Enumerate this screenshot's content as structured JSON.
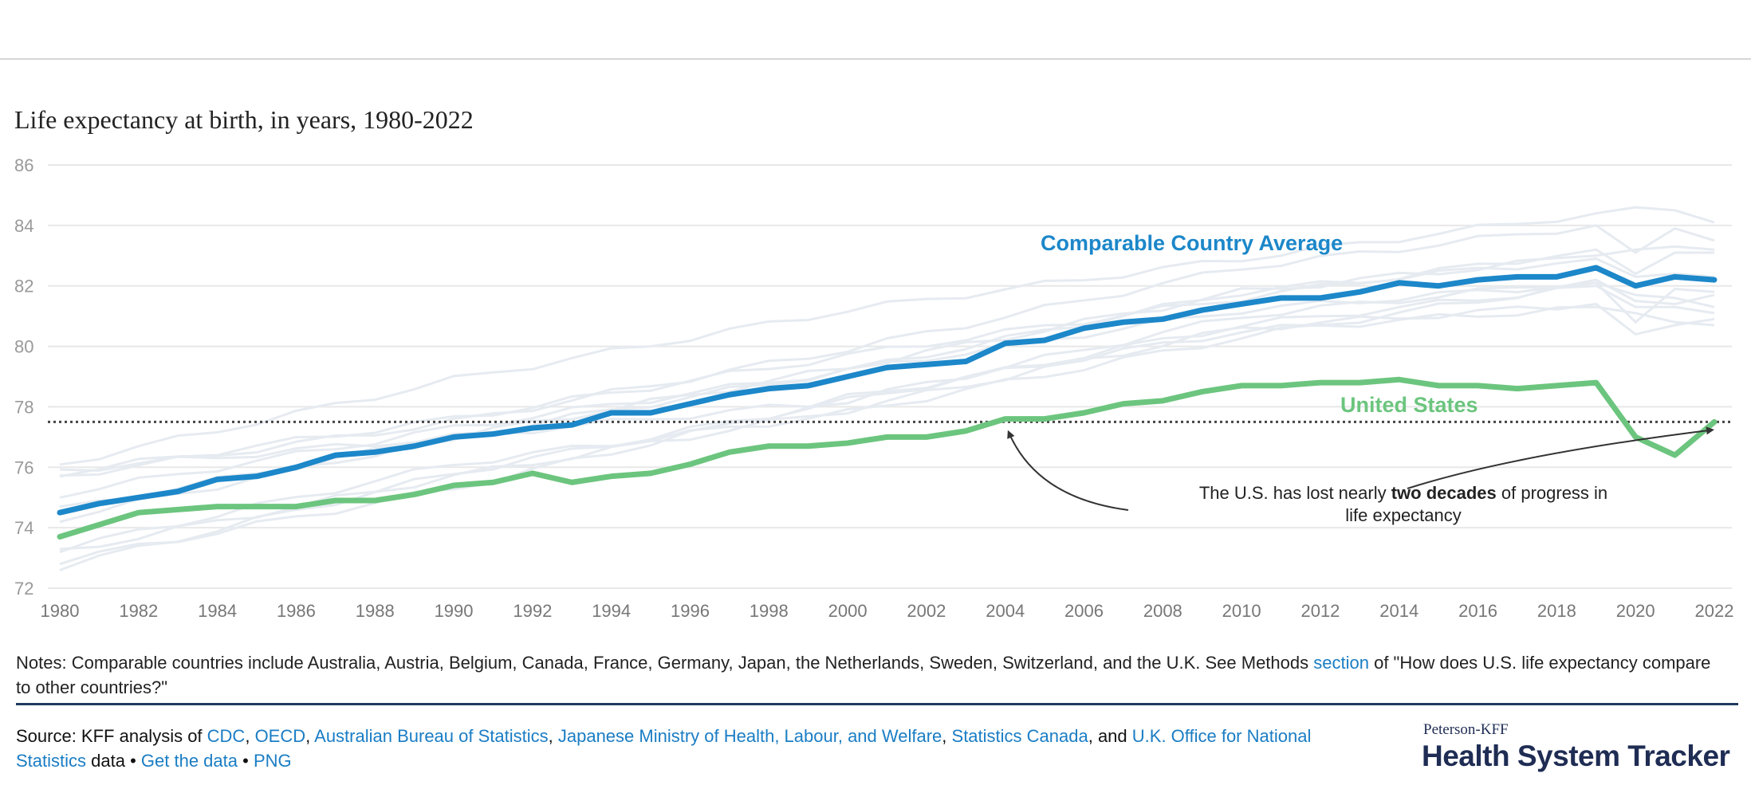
{
  "chart_data": {
    "type": "line",
    "title": "Life expectancy at birth, in years, 1980-2022",
    "xlabel": "",
    "ylabel": "",
    "xlim": [
      1980,
      2022
    ],
    "ylim": [
      72,
      86
    ],
    "yticks": [
      "72",
      "74",
      "76",
      "78",
      "80",
      "82",
      "84",
      "86"
    ],
    "xticks": [
      "1980",
      "1982",
      "1984",
      "1986",
      "1988",
      "1990",
      "1992",
      "1994",
      "1996",
      "1998",
      "2000",
      "2002",
      "2004",
      "2006",
      "2008",
      "2010",
      "2012",
      "2014",
      "2016",
      "2018",
      "2020",
      "2022"
    ],
    "grid": true,
    "reference_line": {
      "y": 77.5,
      "style": "dotted"
    },
    "years": [
      1980,
      1981,
      1982,
      1983,
      1984,
      1985,
      1986,
      1987,
      1988,
      1989,
      1990,
      1991,
      1992,
      1993,
      1994,
      1995,
      1996,
      1997,
      1998,
      1999,
      2000,
      2001,
      2002,
      2003,
      2004,
      2005,
      2006,
      2007,
      2008,
      2009,
      2010,
      2011,
      2012,
      2013,
      2014,
      2015,
      2016,
      2017,
      2018,
      2019,
      2020,
      2021,
      2022
    ],
    "series": [
      {
        "name": "Comparable Country Average",
        "label": "Comparable Country Average",
        "color": "#1c87c9",
        "values": [
          74.5,
          74.8,
          75.0,
          75.2,
          75.6,
          75.7,
          76.0,
          76.4,
          76.5,
          76.7,
          77.0,
          77.1,
          77.3,
          77.4,
          77.8,
          77.8,
          78.1,
          78.4,
          78.6,
          78.7,
          79.0,
          79.3,
          79.4,
          79.5,
          80.1,
          80.2,
          80.6,
          80.8,
          80.9,
          81.2,
          81.4,
          81.6,
          81.6,
          81.8,
          82.1,
          82.0,
          82.2,
          82.3,
          82.3,
          82.6,
          82.0,
          82.3,
          82.2
        ]
      },
      {
        "name": "United States",
        "label": "United States",
        "color": "#6cc57e",
        "values": [
          73.7,
          74.1,
          74.5,
          74.6,
          74.7,
          74.7,
          74.7,
          74.9,
          74.9,
          75.1,
          75.4,
          75.5,
          75.8,
          75.5,
          75.7,
          75.8,
          76.1,
          76.5,
          76.7,
          76.7,
          76.8,
          77.0,
          77.0,
          77.2,
          77.6,
          77.6,
          77.8,
          78.1,
          78.2,
          78.5,
          78.7,
          78.7,
          78.8,
          78.8,
          78.9,
          78.7,
          78.7,
          78.6,
          78.7,
          78.8,
          77.0,
          76.4,
          77.5
        ]
      }
    ],
    "country_series_keyyears": [
      1980,
      1990,
      2000,
      2010,
      2019,
      2020,
      2021,
      2022
    ],
    "country_series_color": "#e6ebf1",
    "country_series": [
      {
        "name": "Japan",
        "values": [
          76.1,
          78.9,
          81.2,
          82.9,
          84.4,
          84.6,
          84.5,
          84.1
        ]
      },
      {
        "name": "Switzerland",
        "values": [
          75.7,
          77.5,
          79.9,
          82.6,
          84.0,
          83.1,
          83.9,
          83.5
        ]
      },
      {
        "name": "Australia",
        "values": [
          74.6,
          77.0,
          79.3,
          81.8,
          83.0,
          83.2,
          83.3,
          83.2
        ]
      },
      {
        "name": "Sweden",
        "values": [
          75.8,
          77.6,
          79.7,
          81.6,
          83.2,
          82.4,
          83.1,
          83.1
        ]
      },
      {
        "name": "France",
        "values": [
          74.3,
          77.0,
          79.2,
          81.8,
          82.9,
          82.3,
          82.4,
          82.3
        ]
      },
      {
        "name": "Canada",
        "values": [
          75.1,
          77.3,
          79.2,
          81.2,
          82.1,
          81.7,
          81.6,
          81.3
        ]
      },
      {
        "name": "Netherlands",
        "values": [
          75.9,
          77.0,
          78.2,
          81.0,
          82.2,
          81.5,
          81.4,
          81.7
        ]
      },
      {
        "name": "Austria",
        "values": [
          72.7,
          75.8,
          78.2,
          80.7,
          82.0,
          81.3,
          81.3,
          81.1
        ]
      },
      {
        "name": "Belgium",
        "values": [
          73.3,
          76.1,
          77.8,
          80.3,
          82.1,
          80.8,
          81.9,
          81.8
        ]
      },
      {
        "name": "U.K.",
        "values": [
          73.2,
          75.7,
          77.9,
          80.6,
          81.4,
          80.4,
          80.7,
          80.9
        ]
      },
      {
        "name": "Germany",
        "values": [
          72.9,
          75.3,
          78.3,
          80.5,
          81.3,
          81.1,
          80.8,
          80.7
        ]
      }
    ],
    "annotation": {
      "text_before": "The U.S. has lost nearly ",
      "text_bold": "two decades",
      "text_after": " of progress in",
      "text_line2": "life expectancy",
      "arrow_targets": [
        {
          "year": 2004,
          "value": 77.6
        },
        {
          "year": 2022,
          "value": 77.5
        }
      ]
    }
  },
  "notes": {
    "text": "Notes: Comparable countries include Australia, Austria, Belgium, Canada, France, Germany, Japan, the Netherlands, Sweden, Switzerland, and the U.K. See Methods ",
    "link": "section",
    "text_after": " of \"How does U.S. life expectancy compare to other countries?\""
  },
  "source": {
    "prefix": "Source: KFF analysis of ",
    "links": [
      "CDC",
      "OECD",
      "Australian Bureau of Statistics",
      "Japanese Ministry of Health, Labour, and Welfare",
      "Statistics Canada",
      "U.K. Office for National Statistics"
    ],
    "sep": ", ",
    "and": ", and ",
    "data_word": " data",
    "bullet": " • ",
    "get_data": "Get the data",
    "png": "PNG"
  },
  "logo": {
    "small": "Peterson-KFF",
    "big": "Health System Tracker"
  }
}
